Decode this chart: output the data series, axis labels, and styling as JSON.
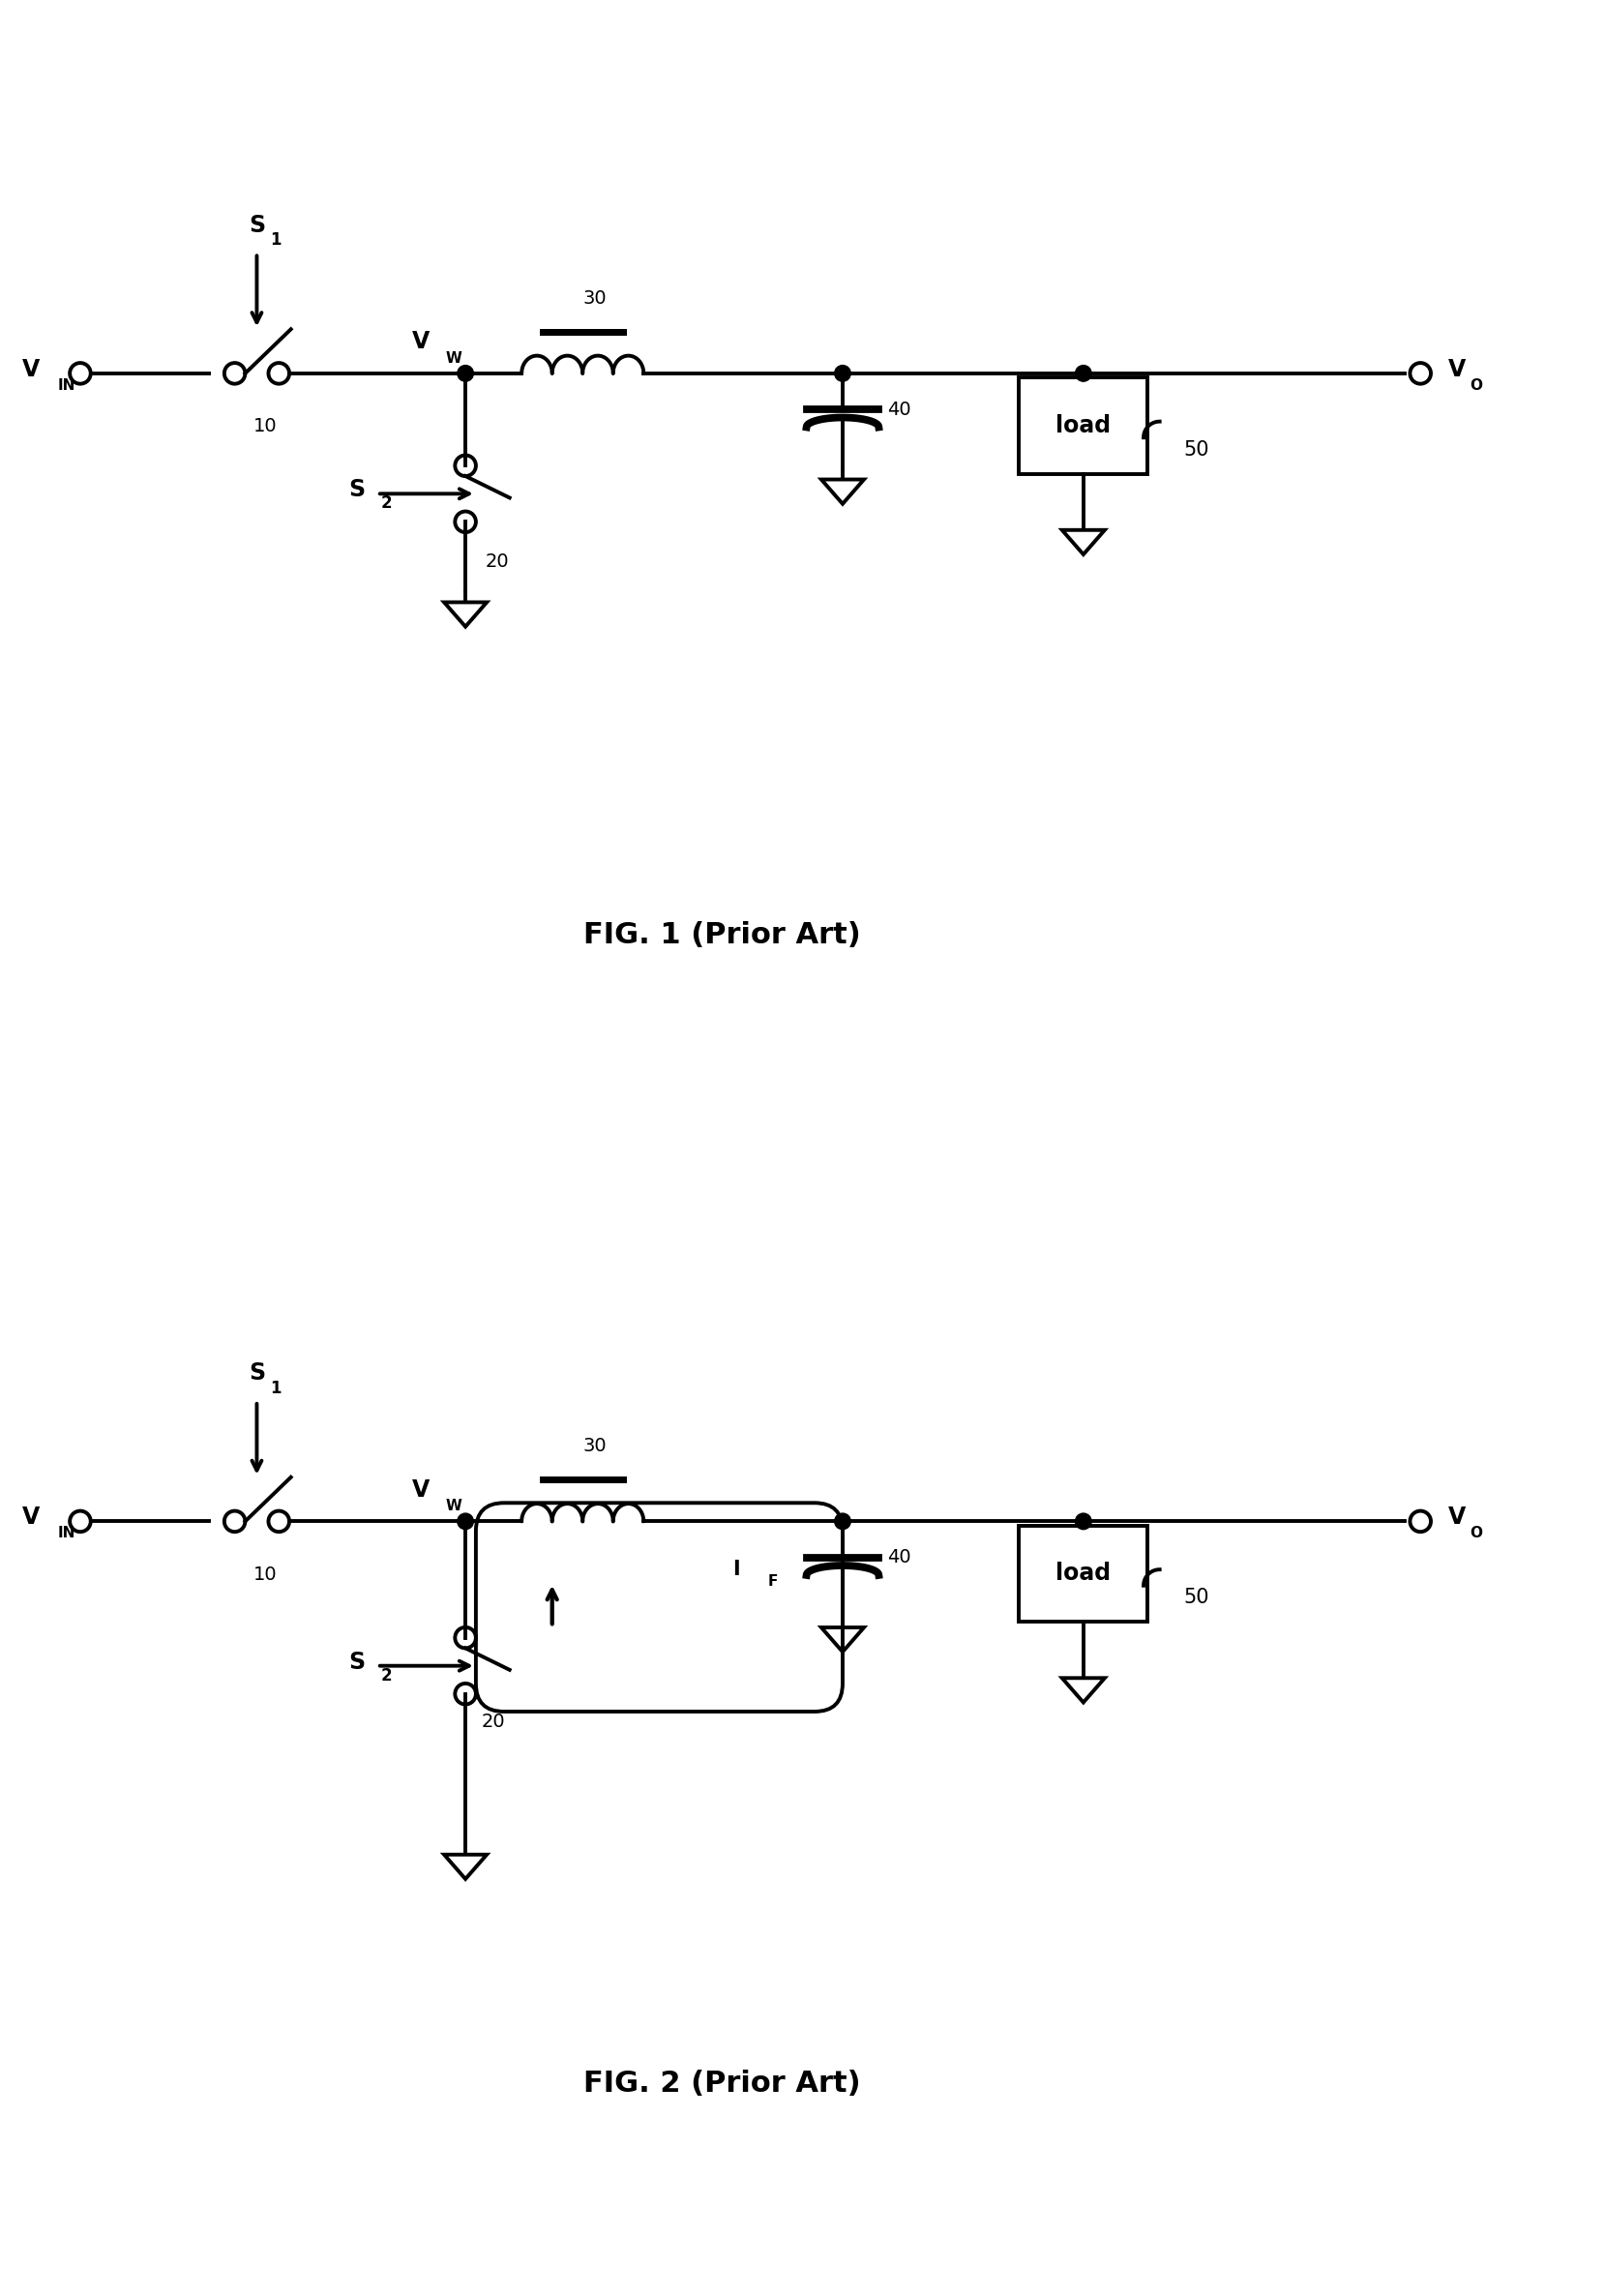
{
  "background_color": "#ffffff",
  "fig_width": 16.59,
  "fig_height": 23.73,
  "fig1_caption": "FIG. 1 (Prior Art)",
  "fig2_caption": "FIG. 2 (Prior Art)",
  "line_color": "#000000",
  "lw": 2.8,
  "fig1_vy": 7.5,
  "fig2_vy": 3.5,
  "xlim": [
    0,
    20
  ],
  "ylim_fig1": [
    0,
    12
  ],
  "ylim_fig2": [
    0,
    12
  ]
}
